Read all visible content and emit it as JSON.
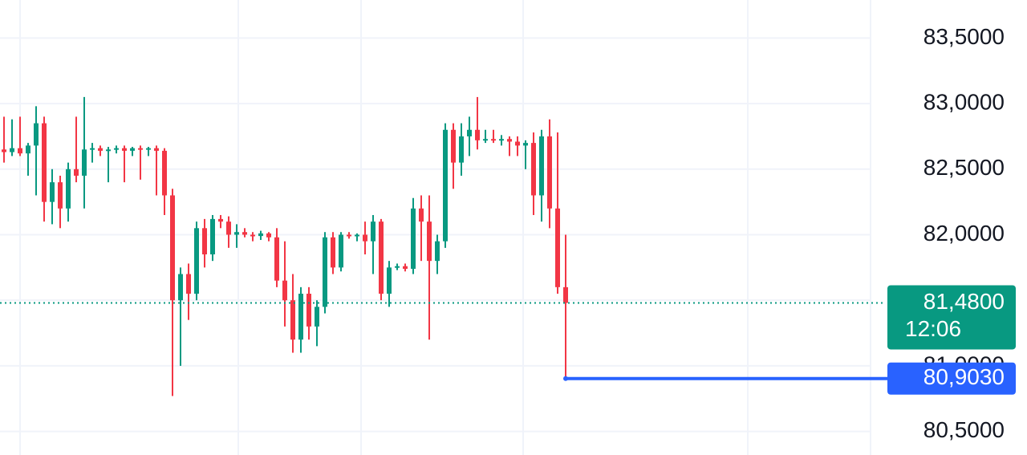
{
  "chart_data": {
    "type": "candlestick",
    "ylim": [
      80.32,
      83.79
    ],
    "yticks": [
      {
        "value": 80.5,
        "label": "80,5000"
      },
      {
        "value": 81.0,
        "label": "81,0000"
      },
      {
        "value": 81.5,
        "label": "81,5000"
      },
      {
        "value": 82.0,
        "label": "82,0000"
      },
      {
        "value": 82.5,
        "label": "82,5000"
      },
      {
        "value": 83.0,
        "label": "83,0000"
      },
      {
        "value": 83.5,
        "label": "83,5000"
      }
    ],
    "grid": true,
    "up_color": "#089981",
    "down_color": "#f23645",
    "last_price": {
      "value": 81.48,
      "label": "81,4800",
      "time": "12:06",
      "color": "#089981"
    },
    "price_line": {
      "value": 80.903,
      "label": "80,9030",
      "color": "#2962ff"
    },
    "candles": [
      {
        "open": 82.65,
        "high": 82.9,
        "low": 82.55,
        "close": 82.63
      },
      {
        "open": 82.63,
        "high": 82.88,
        "low": 82.6,
        "close": 82.66
      },
      {
        "open": 82.66,
        "high": 82.9,
        "low": 82.6,
        "close": 82.62
      },
      {
        "open": 82.62,
        "high": 82.7,
        "low": 82.45,
        "close": 82.68
      },
      {
        "open": 82.68,
        "high": 82.98,
        "low": 82.3,
        "close": 82.85
      },
      {
        "open": 82.85,
        "high": 82.9,
        "low": 82.1,
        "close": 82.25
      },
      {
        "open": 82.25,
        "high": 82.5,
        "low": 82.08,
        "close": 82.4
      },
      {
        "open": 82.4,
        "high": 82.45,
        "low": 82.05,
        "close": 82.2
      },
      {
        "open": 82.2,
        "high": 82.55,
        "low": 82.1,
        "close": 82.5
      },
      {
        "open": 82.5,
        "high": 82.9,
        "low": 82.4,
        "close": 82.45
      },
      {
        "open": 82.45,
        "high": 83.05,
        "low": 82.2,
        "close": 82.65
      },
      {
        "open": 82.65,
        "high": 82.7,
        "low": 82.55,
        "close": 82.66
      },
      {
        "open": 82.66,
        "high": 82.68,
        "low": 82.6,
        "close": 82.64
      },
      {
        "open": 82.64,
        "high": 82.67,
        "low": 82.4,
        "close": 82.65
      },
      {
        "open": 82.65,
        "high": 82.68,
        "low": 82.62,
        "close": 82.66
      },
      {
        "open": 82.66,
        "high": 82.68,
        "low": 82.4,
        "close": 82.64
      },
      {
        "open": 82.64,
        "high": 82.67,
        "low": 82.6,
        "close": 82.66
      },
      {
        "open": 82.66,
        "high": 82.68,
        "low": 82.42,
        "close": 82.65
      },
      {
        "open": 82.65,
        "high": 82.67,
        "low": 82.6,
        "close": 82.66
      },
      {
        "open": 82.66,
        "high": 82.68,
        "low": 82.3,
        "close": 82.64
      },
      {
        "open": 82.64,
        "high": 82.66,
        "low": 82.15,
        "close": 82.3
      },
      {
        "open": 82.3,
        "high": 82.35,
        "low": 80.77,
        "close": 81.5
      },
      {
        "open": 81.5,
        "high": 81.75,
        "low": 81.0,
        "close": 81.7
      },
      {
        "open": 81.7,
        "high": 81.78,
        "low": 81.35,
        "close": 81.55
      },
      {
        "open": 81.55,
        "high": 82.1,
        "low": 81.5,
        "close": 82.05
      },
      {
        "open": 82.05,
        "high": 82.12,
        "low": 81.75,
        "close": 81.85
      },
      {
        "open": 81.85,
        "high": 82.15,
        "low": 81.8,
        "close": 82.12
      },
      {
        "open": 82.12,
        "high": 82.15,
        "low": 82.05,
        "close": 82.1
      },
      {
        "open": 82.1,
        "high": 82.14,
        "low": 81.9,
        "close": 82.0
      },
      {
        "open": 82.0,
        "high": 82.08,
        "low": 81.9,
        "close": 82.02
      },
      {
        "open": 82.02,
        "high": 82.05,
        "low": 81.98,
        "close": 82.0
      },
      {
        "open": 82.0,
        "high": 82.02,
        "low": 81.95,
        "close": 81.99
      },
      {
        "open": 81.99,
        "high": 82.03,
        "low": 81.96,
        "close": 82.01
      },
      {
        "open": 82.01,
        "high": 82.02,
        "low": 81.95,
        "close": 81.98
      },
      {
        "open": 81.98,
        "high": 82.05,
        "low": 81.6,
        "close": 81.65
      },
      {
        "open": 81.65,
        "high": 81.95,
        "low": 81.3,
        "close": 81.5
      },
      {
        "open": 81.5,
        "high": 81.7,
        "low": 81.1,
        "close": 81.2
      },
      {
        "open": 81.2,
        "high": 81.6,
        "low": 81.1,
        "close": 81.55
      },
      {
        "open": 81.55,
        "high": 81.6,
        "low": 81.2,
        "close": 81.3
      },
      {
        "open": 81.3,
        "high": 81.5,
        "low": 81.15,
        "close": 81.45
      },
      {
        "open": 81.45,
        "high": 82.02,
        "low": 81.4,
        "close": 81.98
      },
      {
        "open": 81.98,
        "high": 82.02,
        "low": 81.7,
        "close": 81.75
      },
      {
        "open": 81.75,
        "high": 82.02,
        "low": 81.72,
        "close": 82.0
      },
      {
        "open": 82.0,
        "high": 82.02,
        "low": 81.97,
        "close": 81.99
      },
      {
        "open": 81.99,
        "high": 82.01,
        "low": 81.95,
        "close": 82.0
      },
      {
        "open": 82.0,
        "high": 82.1,
        "low": 81.85,
        "close": 81.95
      },
      {
        "open": 81.95,
        "high": 82.15,
        "low": 81.7,
        "close": 82.1
      },
      {
        "open": 82.1,
        "high": 82.12,
        "low": 81.5,
        "close": 81.55
      },
      {
        "open": 81.55,
        "high": 81.8,
        "low": 81.45,
        "close": 81.75
      },
      {
        "open": 81.75,
        "high": 81.78,
        "low": 81.73,
        "close": 81.76
      },
      {
        "open": 81.76,
        "high": 81.78,
        "low": 81.72,
        "close": 81.74
      },
      {
        "open": 81.74,
        "high": 82.28,
        "low": 81.7,
        "close": 82.2
      },
      {
        "open": 82.2,
        "high": 82.3,
        "low": 81.8,
        "close": 82.1
      },
      {
        "open": 82.1,
        "high": 82.3,
        "low": 81.2,
        "close": 81.8
      },
      {
        "open": 81.8,
        "high": 82.0,
        "low": 81.7,
        "close": 81.95
      },
      {
        "open": 81.95,
        "high": 82.85,
        "low": 81.9,
        "close": 82.8
      },
      {
        "open": 82.8,
        "high": 82.85,
        "low": 82.35,
        "close": 82.55
      },
      {
        "open": 82.55,
        "high": 82.85,
        "low": 82.45,
        "close": 82.75
      },
      {
        "open": 82.75,
        "high": 82.9,
        "low": 82.6,
        "close": 82.8
      },
      {
        "open": 82.8,
        "high": 83.05,
        "low": 82.65,
        "close": 82.72
      },
      {
        "open": 82.72,
        "high": 82.8,
        "low": 82.7,
        "close": 82.73
      },
      {
        "open": 82.73,
        "high": 82.8,
        "low": 82.7,
        "close": 82.72
      },
      {
        "open": 82.72,
        "high": 82.76,
        "low": 82.68,
        "close": 82.73
      },
      {
        "open": 82.73,
        "high": 82.75,
        "low": 82.6,
        "close": 82.71
      },
      {
        "open": 82.71,
        "high": 82.75,
        "low": 82.6,
        "close": 82.68
      },
      {
        "open": 82.68,
        "high": 82.72,
        "low": 82.5,
        "close": 82.7
      },
      {
        "open": 82.7,
        "high": 82.78,
        "low": 82.15,
        "close": 82.3
      },
      {
        "open": 82.3,
        "high": 82.8,
        "low": 82.1,
        "close": 82.75
      },
      {
        "open": 82.75,
        "high": 82.88,
        "low": 82.05,
        "close": 82.2
      },
      {
        "open": 82.2,
        "high": 82.78,
        "low": 81.55,
        "close": 81.6
      },
      {
        "open": 81.6,
        "high": 82.0,
        "low": 80.903,
        "close": 81.48
      }
    ]
  }
}
